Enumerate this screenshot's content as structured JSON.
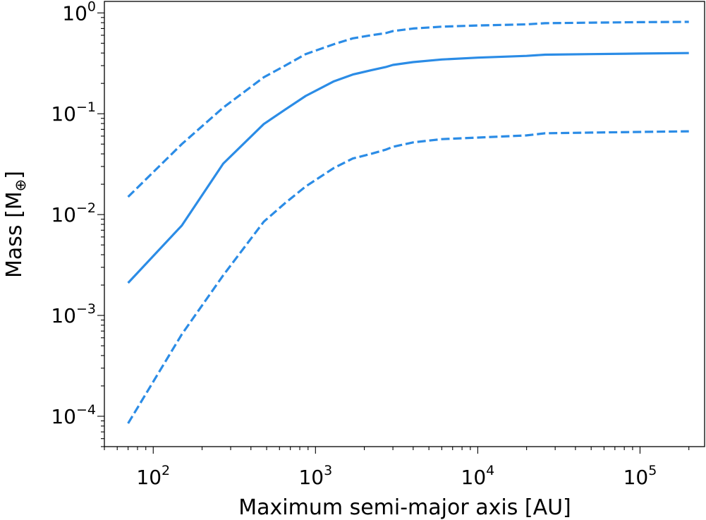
{
  "chart_data": {
    "type": "line",
    "title": "",
    "xlabel": "Maximum semi-major axis [AU]",
    "ylabel": {
      "main": "Mass [M",
      "subscript": "⊕",
      "suffix": "]"
    },
    "x_scale": "log",
    "y_scale": "log",
    "xlim": [
      50,
      250000
    ],
    "ylim": [
      5e-05,
      1.3
    ],
    "x_major_ticks": [
      {
        "value": 100,
        "base": "10",
        "exp": "2"
      },
      {
        "value": 1000,
        "base": "10",
        "exp": "3"
      },
      {
        "value": 10000,
        "base": "10",
        "exp": "4"
      },
      {
        "value": 100000,
        "base": "10",
        "exp": "5"
      }
    ],
    "y_major_ticks": [
      {
        "value": 0.0001,
        "base": "10",
        "exp": "−4"
      },
      {
        "value": 0.001,
        "base": "10",
        "exp": "−3"
      },
      {
        "value": 0.01,
        "base": "10",
        "exp": "−2"
      },
      {
        "value": 0.1,
        "base": "10",
        "exp": "−1"
      },
      {
        "value": 1,
        "base": "10",
        "exp": "0"
      }
    ],
    "grid": false,
    "legend": "none",
    "line_color": "#2b8ce6",
    "x": [
      70,
      150,
      270,
      480,
      650,
      870,
      1300,
      1700,
      2200,
      2700,
      3000,
      4000,
      6000,
      10000,
      20000,
      26000,
      50000,
      100000,
      200000
    ],
    "series": [
      {
        "style": "solid",
        "values": [
          0.0021,
          0.0078,
          0.032,
          0.079,
          0.11,
          0.15,
          0.21,
          0.245,
          0.27,
          0.29,
          0.305,
          0.325,
          0.345,
          0.36,
          0.375,
          0.385,
          0.39,
          0.395,
          0.4
        ]
      },
      {
        "style": "dashed",
        "values": [
          0.015,
          0.05,
          0.115,
          0.23,
          0.3,
          0.39,
          0.49,
          0.56,
          0.6,
          0.63,
          0.66,
          0.7,
          0.73,
          0.75,
          0.77,
          0.79,
          0.8,
          0.81,
          0.815
        ]
      },
      {
        "style": "dashed",
        "values": [
          8.5e-05,
          0.00065,
          0.0025,
          0.0085,
          0.013,
          0.019,
          0.029,
          0.036,
          0.04,
          0.044,
          0.047,
          0.052,
          0.056,
          0.058,
          0.061,
          0.064,
          0.065,
          0.066,
          0.067
        ]
      }
    ]
  }
}
